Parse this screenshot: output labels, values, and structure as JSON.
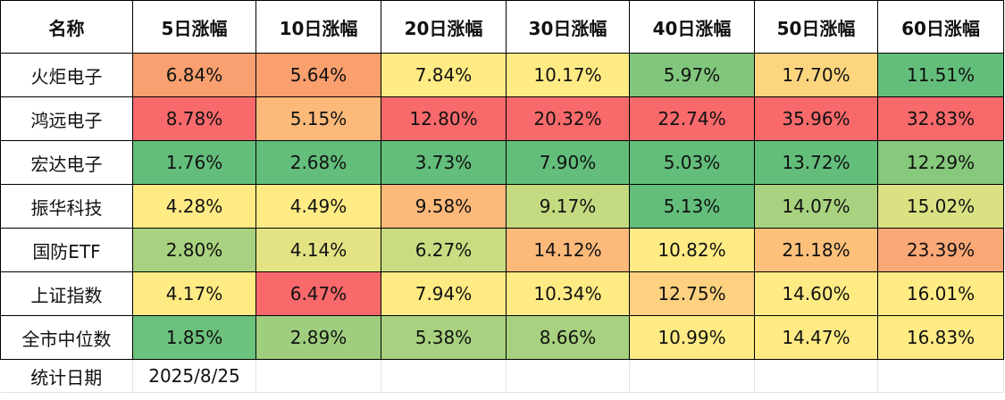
{
  "table": {
    "headers": [
      "名称",
      "5日涨幅",
      "10日涨幅",
      "20日涨幅",
      "30日涨幅",
      "40日涨幅",
      "50日涨幅",
      "60日涨幅"
    ],
    "rows": [
      {
        "name": "火炬电子",
        "cells": [
          {
            "value": "6.84%",
            "color": "#F8A070"
          },
          {
            "value": "5.64%",
            "color": "#FA9F6E"
          },
          {
            "value": "7.84%",
            "color": "#FFEB84"
          },
          {
            "value": "10.17%",
            "color": "#FFEB84"
          },
          {
            "value": "5.97%",
            "color": "#80C67C"
          },
          {
            "value": "17.70%",
            "color": "#FDD57F"
          },
          {
            "value": "11.51%",
            "color": "#63BE7B"
          }
        ]
      },
      {
        "name": "鸿远电子",
        "cells": [
          {
            "value": "8.78%",
            "color": "#F8696B"
          },
          {
            "value": "5.15%",
            "color": "#FDB97A"
          },
          {
            "value": "12.80%",
            "color": "#F8696B"
          },
          {
            "value": "20.32%",
            "color": "#F8696B"
          },
          {
            "value": "22.74%",
            "color": "#F8696B"
          },
          {
            "value": "35.96%",
            "color": "#F8696B"
          },
          {
            "value": "32.83%",
            "color": "#F8696B"
          }
        ]
      },
      {
        "name": "宏达电子",
        "cells": [
          {
            "value": "1.76%",
            "color": "#63BE7B"
          },
          {
            "value": "2.68%",
            "color": "#63BE7B"
          },
          {
            "value": "3.73%",
            "color": "#63BE7B"
          },
          {
            "value": "7.90%",
            "color": "#63BE7B"
          },
          {
            "value": "5.03%",
            "color": "#63BE7B"
          },
          {
            "value": "13.72%",
            "color": "#63BE7B"
          },
          {
            "value": "12.29%",
            "color": "#86C87C"
          }
        ]
      },
      {
        "name": "振华科技",
        "cells": [
          {
            "value": "4.28%",
            "color": "#FFEB84"
          },
          {
            "value": "4.49%",
            "color": "#FFEB84"
          },
          {
            "value": "9.58%",
            "color": "#FCB97A"
          },
          {
            "value": "9.17%",
            "color": "#C3DA80"
          },
          {
            "value": "5.13%",
            "color": "#63BE7B"
          },
          {
            "value": "14.07%",
            "color": "#A8D27F"
          },
          {
            "value": "15.02%",
            "color": "#DAE182"
          }
        ]
      },
      {
        "name": "国防ETF",
        "cells": [
          {
            "value": "2.80%",
            "color": "#A8D27F"
          },
          {
            "value": "4.14%",
            "color": "#E4E383"
          },
          {
            "value": "6.27%",
            "color": "#C8DC81"
          },
          {
            "value": "14.12%",
            "color": "#FCB97A"
          },
          {
            "value": "10.82%",
            "color": "#FFEB84"
          },
          {
            "value": "21.18%",
            "color": "#FCC07B"
          },
          {
            "value": "23.39%",
            "color": "#FBA877"
          }
        ]
      },
      {
        "name": "上证指数",
        "cells": [
          {
            "value": "4.17%",
            "color": "#FFEB84"
          },
          {
            "value": "6.47%",
            "color": "#F8696B"
          },
          {
            "value": "7.94%",
            "color": "#FFEB84"
          },
          {
            "value": "10.34%",
            "color": "#FFEB84"
          },
          {
            "value": "12.75%",
            "color": "#FDD17F"
          },
          {
            "value": "14.60%",
            "color": "#FFEB84"
          },
          {
            "value": "16.01%",
            "color": "#FFEB84"
          }
        ]
      },
      {
        "name": "全市中位数",
        "cells": [
          {
            "value": "1.85%",
            "color": "#6CC17C"
          },
          {
            "value": "2.89%",
            "color": "#9FCF7E"
          },
          {
            "value": "5.38%",
            "color": "#A8D27F"
          },
          {
            "value": "8.66%",
            "color": "#A8D27F"
          },
          {
            "value": "10.99%",
            "color": "#FFEB84"
          },
          {
            "value": "14.47%",
            "color": "#FFEB84"
          },
          {
            "value": "16.83%",
            "color": "#FFEB84"
          }
        ]
      }
    ],
    "footer": {
      "label": "统计日期",
      "date": "2025/8/25"
    }
  }
}
